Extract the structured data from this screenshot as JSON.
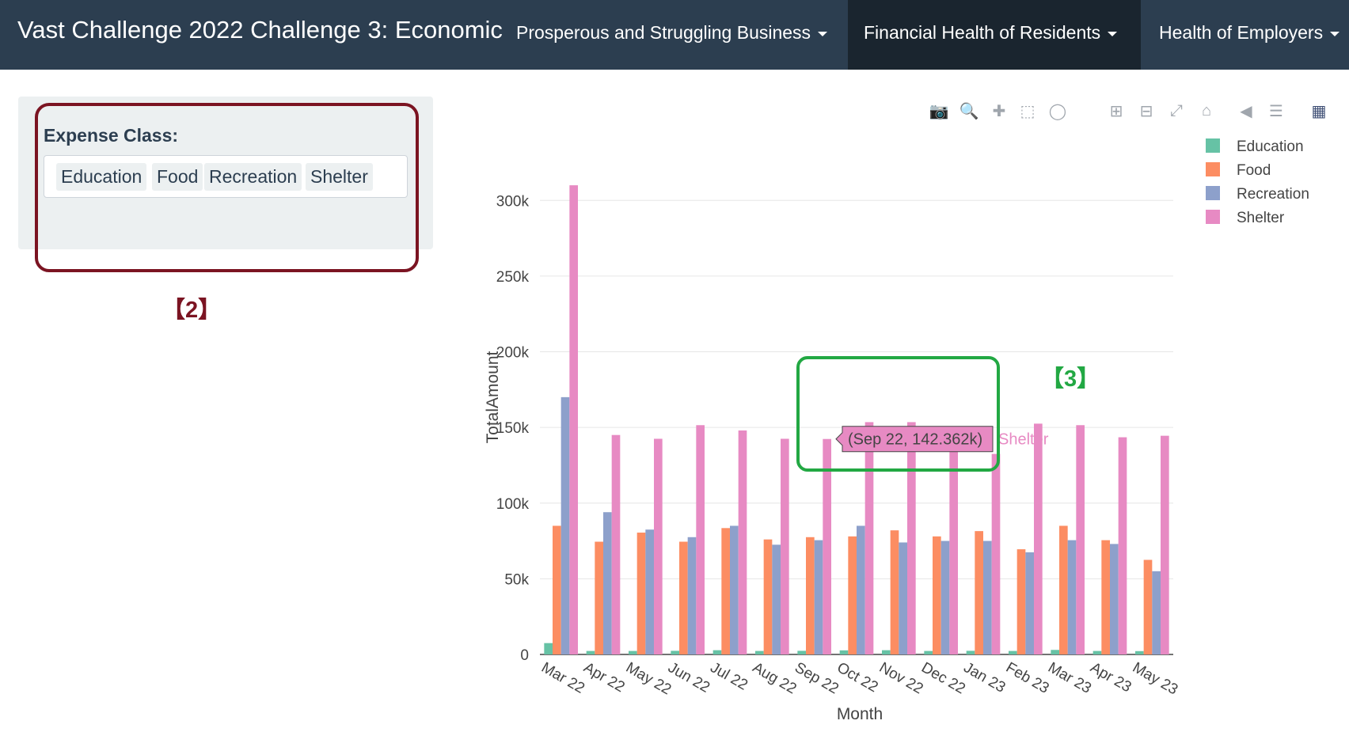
{
  "navbar": {
    "title": "Vast Challenge 2022 Challenge 3: Economic",
    "items": [
      {
        "label": "Prosperous and Struggling Business",
        "active": false
      },
      {
        "label": "Financial Health of Residents",
        "active": true
      },
      {
        "label": "Health of Employers",
        "active": false
      }
    ]
  },
  "sidebar": {
    "label": "Expense Class:",
    "selected": [
      "Education",
      "Food",
      "Recreation",
      "Shelter"
    ]
  },
  "annotations": {
    "red_label": "【2】",
    "green_label": "【3】"
  },
  "modebar": {
    "icons": [
      "camera-icon",
      "zoom-icon",
      "pan-icon",
      "box-select-icon",
      "lasso-icon",
      "zoom-in-icon",
      "zoom-out-icon",
      "autoscale-icon",
      "reset-axes-icon",
      "hover-closest-icon",
      "hover-compare-icon",
      "plotly-logo-icon"
    ],
    "active": "zoom-icon"
  },
  "tooltip": {
    "text": "(Sep 22, 142.362k)",
    "series": "Shelter",
    "color": "#e78ac3"
  },
  "chart_data": {
    "type": "bar",
    "xlabel": "Month",
    "ylabel": "TotalAmount",
    "ylim": [
      0,
      320000
    ],
    "yticks": [
      0,
      50000,
      100000,
      150000,
      200000,
      250000,
      300000
    ],
    "ytick_labels": [
      "0",
      "50k",
      "100k",
      "150k",
      "200k",
      "250k",
      "300k"
    ],
    "categories": [
      "Mar 22",
      "Apr 22",
      "May 22",
      "Jun 22",
      "Jul 22",
      "Aug 22",
      "Sep 22",
      "Oct 22",
      "Nov 22",
      "Dec 22",
      "Jan 23",
      "Feb 23",
      "Mar 23",
      "Apr 23",
      "May 23"
    ],
    "legend_position": "top-right",
    "grid": true,
    "series": [
      {
        "name": "Education",
        "color": "#66c2a5",
        "values": [
          7500,
          2300,
          2300,
          2400,
          2800,
          2300,
          2400,
          2700,
          2800,
          2300,
          2400,
          2300,
          3000,
          2300,
          2200
        ]
      },
      {
        "name": "Food",
        "color": "#fc8d62",
        "values": [
          85000,
          74500,
          80500,
          74500,
          83500,
          76000,
          77500,
          78000,
          82000,
          78000,
          81500,
          69500,
          85000,
          75500,
          62500
        ]
      },
      {
        "name": "Recreation",
        "color": "#8da0cb",
        "values": [
          170000,
          94000,
          82500,
          77500,
          85000,
          72500,
          75500,
          85000,
          74000,
          75000,
          75000,
          67500,
          75500,
          73000,
          55000
        ]
      },
      {
        "name": "Shelter",
        "color": "#e78ac3",
        "values": [
          310000,
          145000,
          142500,
          151500,
          148000,
          142500,
          142362,
          153500,
          153500,
          143000,
          132500,
          152500,
          151500,
          143500,
          144500
        ]
      }
    ]
  }
}
